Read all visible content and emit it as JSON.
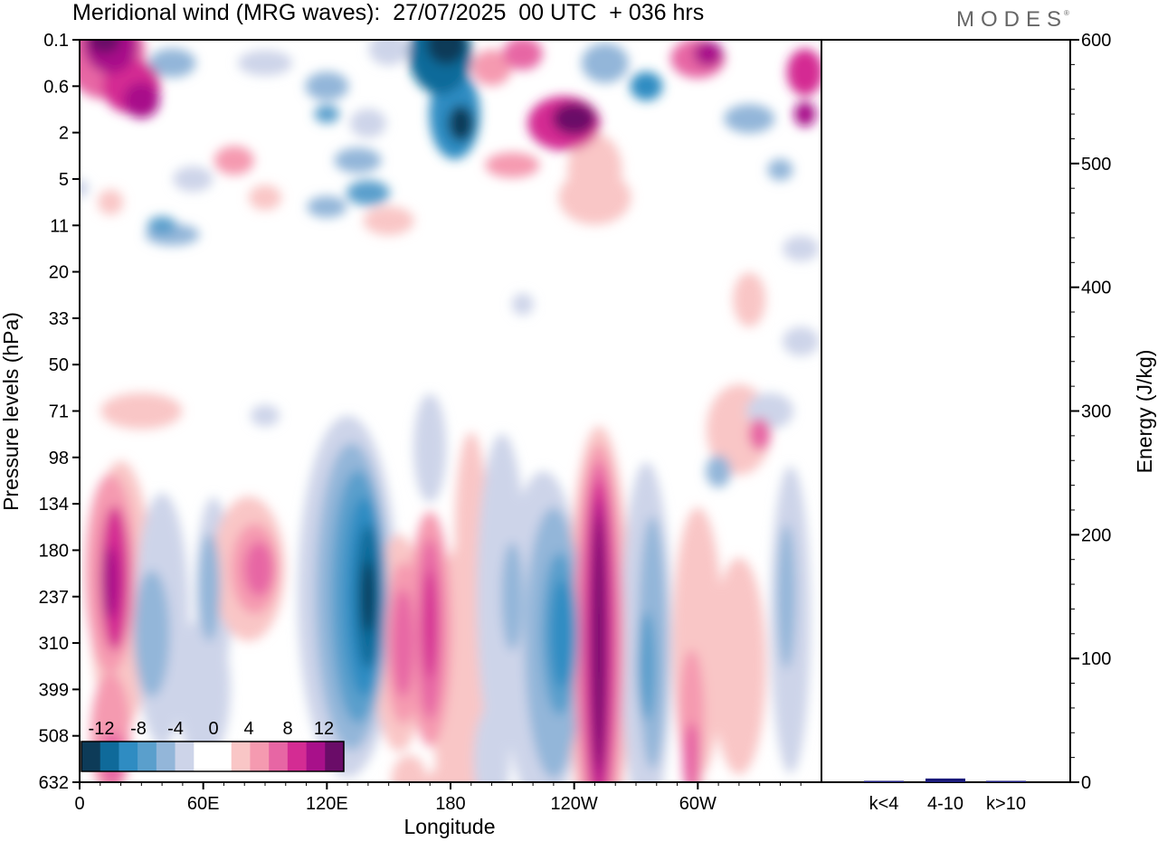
{
  "header": {
    "title": "Meridional wind (MRG waves):  27/07/2025  00 UTC  + 036 hrs",
    "logo": "MODES",
    "logo_mark": "®"
  },
  "chart_data": [
    {
      "type": "heatmap",
      "title": "Meridional wind (MRG waves):  27/07/2025  00 UTC  + 036 hrs",
      "xlabel": "Longitude",
      "ylabel": "Pressure levels (hPa)",
      "x_tick_labels": [
        "0",
        "60E",
        "120E",
        "180",
        "120W",
        "60W"
      ],
      "y_tick_labels": [
        "0.1",
        "0.6",
        "2",
        "5",
        "11",
        "20",
        "33",
        "50",
        "71",
        "98",
        "134",
        "180",
        "237",
        "310",
        "399",
        "508",
        "632"
      ],
      "colorbar": {
        "levels": [
          -12,
          -10,
          -8,
          -6,
          -4,
          -2,
          2,
          4,
          6,
          8,
          10,
          12
        ],
        "labels": [
          "-12",
          "-8",
          "-4",
          "0",
          "4",
          "8",
          "12"
        ],
        "colors": [
          "#0d3b58",
          "#0f6a9a",
          "#2f8cc2",
          "#5a9fcc",
          "#93b6d9",
          "#cdd4e9",
          "#ffffff",
          "#ffffff",
          "#f9c6c6",
          "#f59ab0",
          "#e766a4",
          "#d42c93",
          "#a8108a",
          "#6a0c68"
        ]
      },
      "features": [
        {
          "lon": 15,
          "level": "0.1",
          "value": 12
        },
        {
          "lon": 25,
          "level": "0.6",
          "value": 10
        },
        {
          "lon": 180,
          "level": "0.1",
          "value": -12
        },
        {
          "lon": 185,
          "level": "2",
          "value": -10
        },
        {
          "lon": 240,
          "level": "2",
          "value": 12
        },
        {
          "lon": 140,
          "level": "180",
          "value": -12
        },
        {
          "lon": 170,
          "level": "237",
          "value": 8
        },
        {
          "lon": 230,
          "level": "237",
          "value": -8
        },
        {
          "lon": 250,
          "level": "237",
          "value": 12
        },
        {
          "lon": 20,
          "level": "180",
          "value": 8
        },
        {
          "lon": 85,
          "level": "180",
          "value": 6
        }
      ]
    },
    {
      "type": "bar",
      "ylabel": "Energy (J/kg)",
      "ylim": [
        0,
        600
      ],
      "y_tick_labels": [
        "0",
        "100",
        "200",
        "300",
        "400",
        "500",
        "600"
      ],
      "categories": [
        "k<4",
        "4-10",
        "k>10"
      ],
      "values": [
        0.5,
        3,
        0.2
      ],
      "bar_color": "#1a1a7a"
    }
  ]
}
